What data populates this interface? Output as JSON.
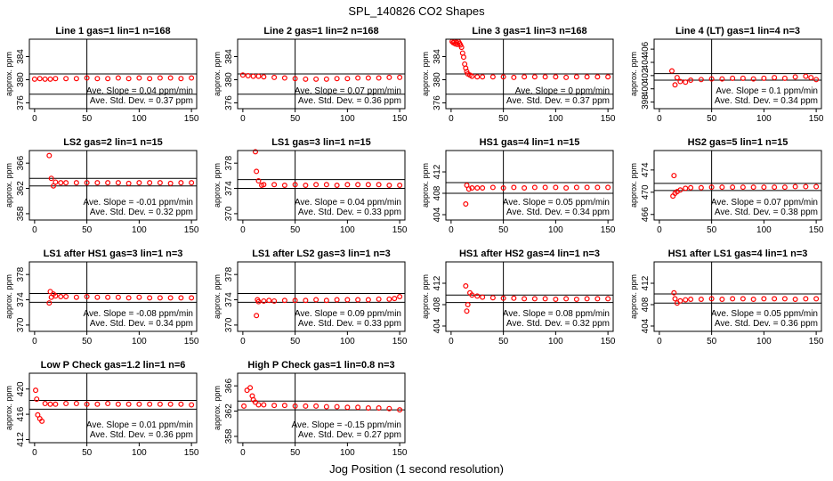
{
  "figure": {
    "title": "SPL_140826  CO2 Shapes",
    "xlabel": "Jog Position (1 second resolution)"
  },
  "chart_data": [
    {
      "type": "scatter",
      "title": "Line 1 gas=1 lin=1 n=168",
      "ylabel": "approx. ppm",
      "xlim": [
        -5,
        155
      ],
      "ylim": [
        375,
        387
      ],
      "yticks": [
        376,
        380,
        384
      ],
      "xticks": [
        0,
        50,
        100,
        150
      ],
      "ref_lines": [
        381,
        377.5
      ],
      "stats": [
        "Ave. Slope = 0.04 ppm/min",
        "Ave. Std. Dev. = 0.37 ppm"
      ],
      "x": [
        0,
        5,
        10,
        15,
        20,
        30,
        40,
        50,
        60,
        70,
        80,
        90,
        100,
        110,
        120,
        130,
        140,
        150
      ],
      "y": [
        380.1,
        380.2,
        380.1,
        380.1,
        380.2,
        380.2,
        380.2,
        380.3,
        380.2,
        380.2,
        380.3,
        380.2,
        380.3,
        380.2,
        380.3,
        380.3,
        380.2,
        380.3
      ]
    },
    {
      "type": "scatter",
      "title": "Line 2 gas=1 lin=2 n=168",
      "ylabel": "approx. ppm",
      "xlim": [
        -5,
        155
      ],
      "ylim": [
        375,
        387
      ],
      "yticks": [
        376,
        380,
        384
      ],
      "xticks": [
        0,
        50,
        100,
        150
      ],
      "ref_lines": [
        381,
        377.5
      ],
      "stats": [
        "Ave. Slope = 0.07 ppm/min",
        "Ave. Std. Dev. = 0.36 ppm"
      ],
      "x": [
        0,
        5,
        10,
        15,
        20,
        30,
        40,
        50,
        60,
        70,
        80,
        90,
        100,
        110,
        120,
        130,
        140,
        150
      ],
      "y": [
        380.8,
        380.7,
        380.6,
        380.6,
        380.5,
        380.4,
        380.3,
        380.2,
        380.1,
        380.1,
        380.1,
        380.2,
        380.2,
        380.3,
        380.3,
        380.3,
        380.4,
        380.4
      ]
    },
    {
      "type": "scatter",
      "title": "Line 3 gas=1 lin=3 n=168",
      "ylabel": "approx. ppm",
      "xlim": [
        -5,
        155
      ],
      "ylim": [
        375,
        387
      ],
      "yticks": [
        376,
        380,
        384
      ],
      "xticks": [
        0,
        50,
        100,
        150
      ],
      "ref_lines": [
        381,
        377.5
      ],
      "stats": [
        "Ave. Slope = 0 ppm/min",
        "Ave. Std. Dev. = 0.37 ppm"
      ],
      "x": [
        1,
        2,
        3,
        4,
        5,
        6,
        7,
        8,
        9,
        10,
        11,
        12,
        13,
        14,
        15,
        16,
        18,
        20,
        25,
        30,
        40,
        50,
        60,
        70,
        80,
        90,
        100,
        110,
        120,
        130,
        140,
        150
      ],
      "y": [
        386.6,
        386.4,
        386.6,
        386.2,
        386.5,
        386.1,
        386.6,
        386.3,
        386.0,
        385.6,
        384.6,
        383.9,
        382.7,
        382.0,
        381.4,
        381.0,
        380.8,
        380.6,
        380.5,
        380.5,
        380.5,
        380.5,
        380.4,
        380.5,
        380.5,
        380.5,
        380.5,
        380.4,
        380.5,
        380.5,
        380.5,
        380.5
      ]
    },
    {
      "type": "scatter",
      "title": "Line 4 (LT) gas=1 lin=4 n=3",
      "ylabel": "approx. ppm",
      "xlim": [
        -5,
        155
      ],
      "ylim": [
        397,
        407.5
      ],
      "yticks": [
        398,
        400,
        402,
        404,
        406
      ],
      "xticks": [
        0,
        50,
        100,
        150
      ],
      "ref_lines": [
        402.3,
        401.3
      ],
      "stats": [
        "Ave. Slope = 0.1 ppm/min",
        "Ave. Std. Dev. = 0.34 ppm"
      ],
      "x": [
        12,
        15,
        17,
        20,
        25,
        30,
        40,
        50,
        60,
        70,
        80,
        90,
        100,
        110,
        120,
        130,
        140,
        145,
        150
      ],
      "y": [
        402.7,
        400.6,
        401.7,
        401.1,
        401.0,
        401.3,
        401.4,
        401.5,
        401.5,
        401.6,
        401.6,
        401.5,
        401.6,
        401.7,
        401.6,
        401.8,
        401.9,
        401.7,
        401.4
      ]
    },
    {
      "type": "scatter",
      "title": "LS2 gas=2 lin=1 n=15",
      "ylabel": "approx. ppm",
      "xlim": [
        -5,
        155
      ],
      "ylim": [
        357,
        368
      ],
      "yticks": [
        358,
        362,
        366
      ],
      "xticks": [
        0,
        50,
        100,
        150
      ],
      "ref_lines": [
        363.6,
        362.4
      ],
      "stats": [
        "Ave. Slope = -0.01 ppm/min",
        "Ave. Std. Dev. = 0.32 ppm"
      ],
      "x": [
        14,
        16,
        18,
        20,
        25,
        30,
        40,
        50,
        60,
        70,
        80,
        90,
        100,
        110,
        120,
        130,
        140,
        150
      ],
      "y": [
        367.2,
        363.6,
        362.4,
        363.0,
        362.9,
        362.9,
        362.9,
        362.9,
        362.9,
        362.9,
        362.9,
        362.8,
        362.9,
        362.9,
        362.9,
        362.8,
        362.9,
        362.9
      ]
    },
    {
      "type": "scatter",
      "title": "LS1 gas=3 lin=1 n=15",
      "ylabel": "approx. ppm",
      "xlim": [
        -5,
        155
      ],
      "ylim": [
        369,
        380
      ],
      "yticks": [
        370,
        374,
        378
      ],
      "xticks": [
        0,
        50,
        100,
        150
      ],
      "ref_lines": [
        375.4,
        374.0
      ],
      "stats": [
        "Ave. Slope = 0.04 ppm/min",
        "Ave. Std. Dev. = 0.33 ppm"
      ],
      "x": [
        12,
        13,
        15,
        18,
        20,
        30,
        40,
        50,
        60,
        70,
        80,
        90,
        100,
        110,
        120,
        130,
        140,
        150
      ],
      "y": [
        379.8,
        376.7,
        375.2,
        374.5,
        374.6,
        374.6,
        374.5,
        374.6,
        374.5,
        374.6,
        374.6,
        374.5,
        374.6,
        374.6,
        374.6,
        374.6,
        374.5,
        374.5
      ]
    },
    {
      "type": "scatter",
      "title": "HS1 gas=4 lin=1 n=15",
      "ylabel": "approx. ppm",
      "xlim": [
        -5,
        155
      ],
      "ylim": [
        403,
        416
      ],
      "yticks": [
        404,
        408,
        412
      ],
      "xticks": [
        0,
        50,
        100,
        150
      ],
      "ref_lines": [
        410.0,
        408.0
      ],
      "stats": [
        "Ave. Slope = 0.05 ppm/min",
        "Ave. Std. Dev. = 0.34 ppm"
      ],
      "x": [
        14,
        15,
        17,
        20,
        25,
        30,
        40,
        50,
        60,
        70,
        80,
        90,
        100,
        110,
        120,
        130,
        140,
        150
      ],
      "y": [
        406.0,
        409.5,
        408.8,
        409.0,
        409.0,
        409.0,
        409.1,
        409.0,
        409.1,
        409.0,
        409.1,
        409.1,
        409.1,
        409.0,
        409.1,
        409.1,
        409.1,
        409.1
      ]
    },
    {
      "type": "scatter",
      "title": "HS2 gas=5 lin=1 n=15",
      "ylabel": "approx. ppm",
      "xlim": [
        -5,
        155
      ],
      "ylim": [
        465,
        477.5
      ],
      "yticks": [
        466,
        470,
        474
      ],
      "xticks": [
        0,
        50,
        100,
        150
      ],
      "ref_lines": [
        471.6,
        470.3
      ],
      "stats": [
        "Ave. Slope = 0.07 ppm/min",
        "Ave. Std. Dev. = 0.38 ppm"
      ],
      "x": [
        13,
        14,
        15,
        17,
        20,
        25,
        30,
        40,
        50,
        60,
        70,
        80,
        90,
        100,
        110,
        120,
        130,
        140,
        150
      ],
      "y": [
        469.3,
        473.0,
        469.8,
        470.1,
        470.4,
        470.7,
        470.8,
        470.8,
        470.9,
        470.9,
        470.9,
        470.9,
        470.9,
        470.9,
        470.9,
        470.9,
        471.0,
        471.0,
        471.0
      ]
    },
    {
      "type": "scatter",
      "title": "LS1 after HS1 gas=3 lin=1 n=3",
      "ylabel": "approx. ppm",
      "xlim": [
        -5,
        155
      ],
      "ylim": [
        369,
        380
      ],
      "yticks": [
        370,
        374,
        378
      ],
      "xticks": [
        0,
        50,
        100,
        150
      ],
      "ref_lines": [
        375.0,
        373.6
      ],
      "stats": [
        "Ave. Slope = -0.08 ppm/min",
        "Ave. Std. Dev. = 0.34 ppm"
      ],
      "x": [
        14,
        15,
        16,
        18,
        20,
        25,
        30,
        40,
        50,
        60,
        70,
        80,
        90,
        100,
        110,
        120,
        130,
        140,
        150
      ],
      "y": [
        373.5,
        375.3,
        374.4,
        374.9,
        374.6,
        374.5,
        374.5,
        374.4,
        374.5,
        374.4,
        374.4,
        374.4,
        374.3,
        374.4,
        374.3,
        374.3,
        374.3,
        374.3,
        374.3
      ]
    },
    {
      "type": "scatter",
      "title": "LS1 after LS2 gas=3 lin=1 n=3",
      "ylabel": "approx. ppm",
      "xlim": [
        -5,
        155
      ],
      "ylim": [
        369,
        380
      ],
      "yticks": [
        370,
        374,
        378
      ],
      "xticks": [
        0,
        50,
        100,
        150
      ],
      "ref_lines": [
        375.0,
        373.6
      ],
      "stats": [
        "Ave. Slope = 0.09 ppm/min",
        "Ave. Std. Dev. = 0.33 ppm"
      ],
      "x": [
        13,
        14,
        15,
        20,
        25,
        30,
        40,
        50,
        60,
        70,
        80,
        90,
        100,
        110,
        120,
        130,
        140,
        145,
        150
      ],
      "y": [
        371.5,
        374.0,
        373.7,
        373.8,
        373.9,
        373.8,
        373.9,
        373.9,
        373.9,
        374.0,
        373.9,
        374.0,
        374.0,
        374.0,
        374.0,
        374.1,
        374.1,
        374.2,
        374.5
      ]
    },
    {
      "type": "scatter",
      "title": "HS1 after HS2 gas=4 lin=1 n=3",
      "ylabel": "approx. ppm",
      "xlim": [
        -5,
        155
      ],
      "ylim": [
        403,
        416
      ],
      "yticks": [
        404,
        408,
        412
      ],
      "xticks": [
        0,
        50,
        100,
        150
      ],
      "ref_lines": [
        409.8,
        408.4
      ],
      "stats": [
        "Ave. Slope = 0.08 ppm/min",
        "Ave. Std. Dev. = 0.32 ppm"
      ],
      "x": [
        14,
        15,
        16,
        18,
        20,
        25,
        30,
        40,
        50,
        60,
        70,
        80,
        90,
        100,
        110,
        120,
        130,
        140,
        150
      ],
      "y": [
        411.5,
        406.8,
        408.0,
        410.2,
        409.8,
        409.6,
        409.4,
        409.3,
        409.2,
        409.2,
        409.1,
        409.1,
        409.1,
        409.0,
        409.1,
        409.0,
        409.1,
        409.1,
        409.1
      ]
    },
    {
      "type": "scatter",
      "title": "HS1 after LS1 gas=4 lin=1 n=3",
      "ylabel": "approx. ppm",
      "xlim": [
        -5,
        155
      ],
      "ylim": [
        403,
        416
      ],
      "yticks": [
        404,
        408,
        412
      ],
      "xticks": [
        0,
        50,
        100,
        150
      ],
      "ref_lines": [
        410.0,
        408.3
      ],
      "stats": [
        "Ave. Slope = 0.05 ppm/min",
        "Ave. Std. Dev. = 0.36 ppm"
      ],
      "x": [
        14,
        15,
        17,
        20,
        25,
        30,
        40,
        50,
        60,
        70,
        80,
        90,
        100,
        110,
        120,
        130,
        140,
        150
      ],
      "y": [
        410.2,
        409.1,
        408.3,
        408.7,
        408.9,
        409.0,
        409.0,
        409.1,
        409.0,
        409.1,
        409.1,
        409.0,
        409.1,
        409.1,
        409.1,
        409.0,
        409.1,
        409.1
      ]
    },
    {
      "type": "scatter",
      "title": "Low P Check gas=1.2 lin=1 n=6",
      "ylabel": "approx. ppm",
      "xlim": [
        -5,
        155
      ],
      "ylim": [
        411.5,
        422.5
      ],
      "yticks": [
        412,
        416,
        420
      ],
      "xticks": [
        0,
        50,
        100,
        150
      ],
      "ref_lines": [
        418.2,
        416.8
      ],
      "stats": [
        "Ave. Slope = 0.01 ppm/min",
        "Ave. Std. Dev. = 0.36 ppm"
      ],
      "x": [
        1,
        2,
        3,
        5,
        7,
        10,
        15,
        20,
        30,
        40,
        50,
        60,
        70,
        80,
        90,
        100,
        110,
        120,
        130,
        140,
        150
      ],
      "y": [
        419.8,
        418.4,
        415.9,
        415.3,
        414.9,
        417.7,
        417.6,
        417.6,
        417.7,
        417.7,
        417.6,
        417.6,
        417.7,
        417.6,
        417.6,
        417.6,
        417.6,
        417.6,
        417.6,
        417.6,
        417.5
      ]
    },
    {
      "type": "scatter",
      "title": "High P Check gas=1 lin=0.8 n=3",
      "ylabel": "approx. ppm",
      "xlim": [
        -5,
        155
      ],
      "ylim": [
        357,
        368
      ],
      "yticks": [
        358,
        362,
        366
      ],
      "xticks": [
        0,
        50,
        100,
        150
      ],
      "ref_lines": [
        363.6,
        362.2
      ],
      "stats": [
        "Ave. Slope = -0.15 ppm/min",
        "Ave. Std. Dev. = 0.27 ppm"
      ],
      "x": [
        1,
        4,
        7,
        9,
        10,
        12,
        15,
        20,
        30,
        40,
        50,
        60,
        70,
        80,
        90,
        100,
        110,
        120,
        130,
        140,
        150
      ],
      "y": [
        362.8,
        365.3,
        365.7,
        364.4,
        363.8,
        363.4,
        363.0,
        363.0,
        362.9,
        362.9,
        362.8,
        362.8,
        362.8,
        362.7,
        362.7,
        362.6,
        362.6,
        362.5,
        362.5,
        362.4,
        362.2
      ]
    }
  ]
}
